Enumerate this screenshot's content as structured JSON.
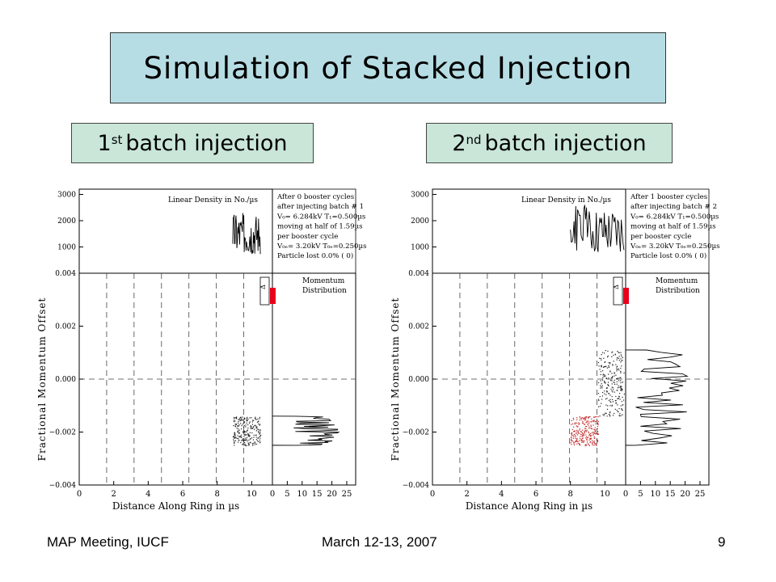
{
  "slide": {
    "title": "Simulation of Stacked Injection",
    "batch1": {
      "sup": "st",
      "num": "1",
      "label": "batch injection"
    },
    "batch2": {
      "sup": "nd",
      "num": "2",
      "label": "batch injection"
    },
    "footer_left": "MAP Meeting, IUCF",
    "footer_center": "March 12-13, 2007",
    "page_number": "9"
  },
  "colors": {
    "title_bg": "#b7dde4",
    "batch_bg": "#c9e6d8",
    "highlight": "#e8001c",
    "particles_injected": "#c02020"
  },
  "chart_data": [
    {
      "type": "scatter",
      "id": "batch1",
      "xlabel": "Distance Along Ring in µs",
      "ylabel": "Fractional Momentum Offset",
      "xlim": [
        0,
        11.2
      ],
      "ylim": [
        -0.004,
        0.004
      ],
      "x_ticks": [
        "0",
        "2",
        "4",
        "6",
        "8",
        "10"
      ],
      "y_ticks": [
        "-0.004",
        "-0.002",
        "0.000",
        "0.002",
        "0.004"
      ],
      "density_ticks": [
        "1000",
        "2000",
        "3000"
      ],
      "momentum_ticks": [
        "0",
        "5",
        "10",
        "15",
        "20",
        "25"
      ],
      "density_label": "Linear Density in No./µs",
      "momentum_label": [
        "Momentum",
        "Distribution"
      ],
      "info_lines": [
        "After   0 booster cycles",
        "after injecting batch #   1",
        "V₀=  6.284kV  T₁=0.500µs",
        "moving at half of 1.59µs",
        "per booster cycle",
        "V₀ₑ=  3.20kV  T₀ₑ=0.250µs",
        "Particle lost   0.0% (    0)"
      ],
      "vlines_x": [
        1.59,
        3.18,
        4.77,
        6.36,
        7.95,
        9.54
      ],
      "particles": [
        {
          "x": [
            8.9,
            10.5
          ],
          "y": [
            -0.0025,
            -0.0014
          ],
          "color": "#222222"
        }
      ],
      "density_region": {
        "x": [
          8.9,
          10.5
        ],
        "mean": 1500,
        "amp": 800
      },
      "momentum_region": {
        "y": [
          -0.0025,
          -0.0014
        ],
        "mean": 15,
        "amp": 8
      },
      "marker_label": "Δ"
    },
    {
      "type": "scatter",
      "id": "batch2",
      "xlabel": "Distance Along Ring in µs",
      "ylabel": "Fractional Momentum Offset",
      "xlim": [
        0,
        11.2
      ],
      "ylim": [
        -0.004,
        0.004
      ],
      "x_ticks": [
        "0",
        "2",
        "4",
        "6",
        "8",
        "10"
      ],
      "y_ticks": [
        "-0.004",
        "-0.002",
        "0.000",
        "0.002",
        "0.004"
      ],
      "density_ticks": [
        "1000",
        "2000",
        "3000"
      ],
      "momentum_ticks": [
        "0",
        "5",
        "10",
        "15",
        "20",
        "25"
      ],
      "density_label": "Linear Density in No./µs",
      "momentum_label": [
        "Momentum",
        "Distribution"
      ],
      "info_lines": [
        "After   1 booster cycles",
        "after injecting batch #   2",
        "V₀=  6.284kV  T₁=0.500µs",
        "moving at half of 1.59µs",
        "per booster cycle",
        "V₀ₑ=  3.20kV  T₀ₑ=0.250µs",
        "Particle lost   0.0% (    0)"
      ],
      "vlines_x": [
        1.59,
        3.18,
        4.77,
        6.36,
        7.95,
        9.54
      ],
      "particles": [
        {
          "x": [
            8.0,
            9.6
          ],
          "y": [
            -0.0025,
            -0.0014
          ],
          "color": "#c02020"
        },
        {
          "x": [
            9.6,
            11.1
          ],
          "y": [
            -0.0014,
            0.0011
          ],
          "color": "#222222"
        }
      ],
      "density_region": {
        "x": [
          8.0,
          11.1
        ],
        "mean": 1700,
        "amp": 900
      },
      "momentum_region": {
        "y": [
          -0.0025,
          0.0011
        ],
        "mean": 12,
        "amp": 9
      },
      "marker_label": "Δ"
    }
  ]
}
